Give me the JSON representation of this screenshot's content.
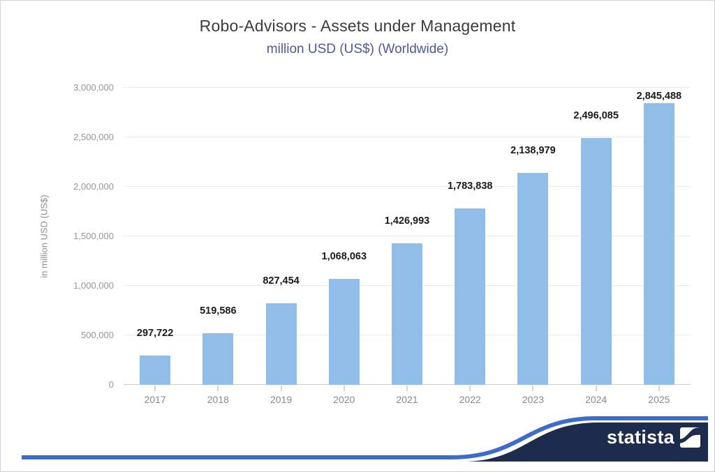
{
  "header": {
    "title": "Robo-Advisors - Assets under Management",
    "subtitle": "million USD (US$) (Worldwide)"
  },
  "branding": {
    "logo_text": "statista"
  },
  "colors": {
    "bar": "#90bee9",
    "accent_blue": "#3f6cca",
    "navy": "#1d2b4c",
    "subtitle_blue": "#4d5a99",
    "gridline": "#ebebeb",
    "axis_line": "#cccccc"
  },
  "chart_data": {
    "type": "bar",
    "title": "Robo-Advisors - Assets under Management",
    "subtitle": "million USD (US$) (Worldwide)",
    "xlabel": "",
    "ylabel": "in million USD (US$)",
    "categories": [
      "2017",
      "2018",
      "2019",
      "2020",
      "2021",
      "2022",
      "2023",
      "2024",
      "2025"
    ],
    "values": [
      297722,
      519586,
      827454,
      1068063,
      1426993,
      1783838,
      2138979,
      2496085,
      2845488
    ],
    "value_labels": [
      "297,722",
      "519,586",
      "827,454",
      "1,068,063",
      "1,426,993",
      "1,783,838",
      "2,138,979",
      "2,496,085",
      "2,845,488"
    ],
    "ylim": [
      0,
      3000000
    ],
    "y_ticks": [
      0,
      500000,
      1000000,
      1500000,
      2000000,
      2500000,
      3000000
    ],
    "y_tick_labels": [
      "0",
      "500,000",
      "1,000,000",
      "1,500,000",
      "2,000,000",
      "2,500,000",
      "3,000,000"
    ],
    "grid": true,
    "legend": false
  }
}
